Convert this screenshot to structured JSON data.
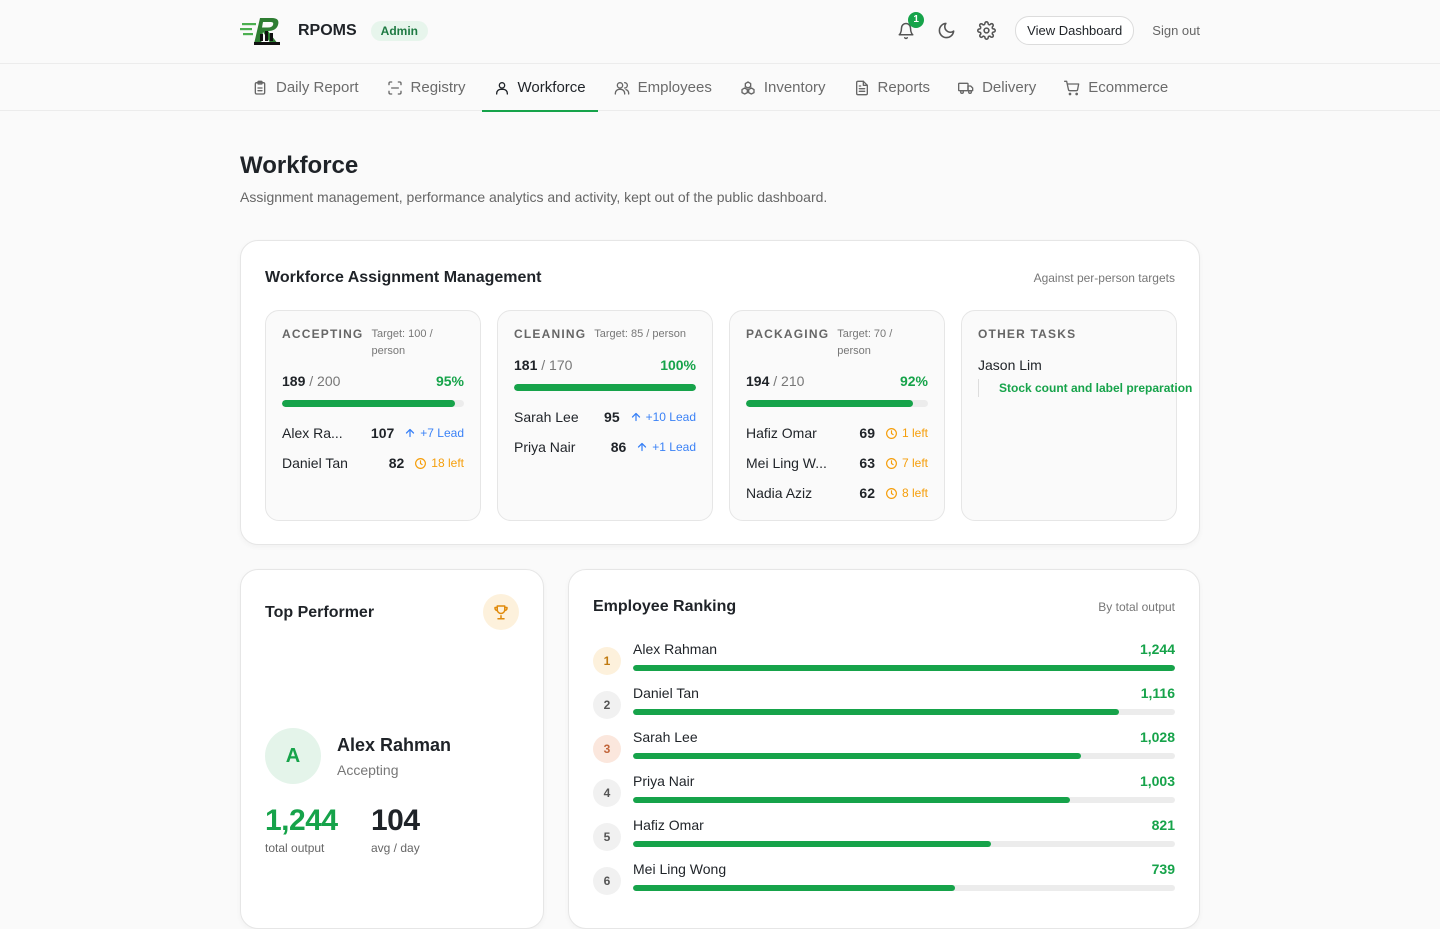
{
  "header": {
    "brand": "RPOMS",
    "role_badge": "Admin",
    "notification_count": "1",
    "view_dashboard": "View Dashboard",
    "sign_out": "Sign out"
  },
  "nav": {
    "tabs": [
      {
        "label": "Daily Report",
        "icon": "clipboard-icon"
      },
      {
        "label": "Registry",
        "icon": "scan-icon"
      },
      {
        "label": "Workforce",
        "icon": "user-icon",
        "active": true
      },
      {
        "label": "Employees",
        "icon": "users-icon"
      },
      {
        "label": "Inventory",
        "icon": "boxes-icon"
      },
      {
        "label": "Reports",
        "icon": "document-icon"
      },
      {
        "label": "Delivery",
        "icon": "truck-icon"
      },
      {
        "label": "Ecommerce",
        "icon": "cart-icon"
      }
    ]
  },
  "page": {
    "title": "Workforce",
    "subtitle": "Assignment management, performance analytics and activity, kept out of the public dashboard."
  },
  "assignment": {
    "title": "Workforce Assignment Management",
    "meta": "Against per-person targets",
    "tasks": [
      {
        "name": "ACCEPTING",
        "target": "Target: 100 / person",
        "done": "189",
        "total": "/ 200",
        "percent_label": "95%",
        "progress": 0.95,
        "people": [
          {
            "name": "Alex Ra...",
            "value": "107",
            "delta": "+7 Lead",
            "kind": "lead"
          },
          {
            "name": "Daniel Tan",
            "value": "82",
            "delta": "18 left",
            "kind": "left"
          }
        ]
      },
      {
        "name": "CLEANING",
        "target": "Target: 85 / person",
        "done": "181",
        "total": "/ 170",
        "percent_label": "100%",
        "progress": 1.0,
        "people": [
          {
            "name": "Sarah Lee",
            "value": "95",
            "delta": "+10 Lead",
            "kind": "lead"
          },
          {
            "name": "Priya Nair",
            "value": "86",
            "delta": "+1 Lead",
            "kind": "lead"
          }
        ]
      },
      {
        "name": "PACKAGING",
        "target": "Target: 70 / person",
        "done": "194",
        "total": "/ 210",
        "percent_label": "92%",
        "progress": 0.92,
        "people": [
          {
            "name": "Hafiz Omar",
            "value": "69",
            "delta": "1 left",
            "kind": "left"
          },
          {
            "name": "Mei Ling W...",
            "value": "63",
            "delta": "7 left",
            "kind": "left"
          },
          {
            "name": "Nadia Aziz",
            "value": "62",
            "delta": "8 left",
            "kind": "left"
          }
        ]
      }
    ],
    "other": {
      "name": "OTHER TASKS",
      "person": "Jason Lim",
      "task": "Stock count and label preparation"
    }
  },
  "top_performer": {
    "title": "Top Performer",
    "initial": "A",
    "name": "Alex Rahman",
    "role": "Accepting",
    "total_output": "1,244",
    "total_output_label": "total output",
    "avg": "104",
    "avg_label": "avg / day"
  },
  "ranking": {
    "title": "Employee Ranking",
    "meta": "By total output",
    "rows": [
      {
        "rank": "1",
        "name": "Alex Rahman",
        "value": "1,244",
        "output": 1244
      },
      {
        "rank": "2",
        "name": "Daniel Tan",
        "value": "1,116",
        "output": 1116
      },
      {
        "rank": "3",
        "name": "Sarah Lee",
        "value": "1,028",
        "output": 1028
      },
      {
        "rank": "4",
        "name": "Priya Nair",
        "value": "1,003",
        "output": 1003
      },
      {
        "rank": "5",
        "name": "Hafiz Omar",
        "value": "821",
        "output": 821
      },
      {
        "rank": "6",
        "name": "Mei Ling Wong",
        "value": "739",
        "output": 739
      }
    ]
  },
  "colors": {
    "accent": "#16a34a",
    "lead": "#3b82f6",
    "warning": "#f59e0b"
  }
}
